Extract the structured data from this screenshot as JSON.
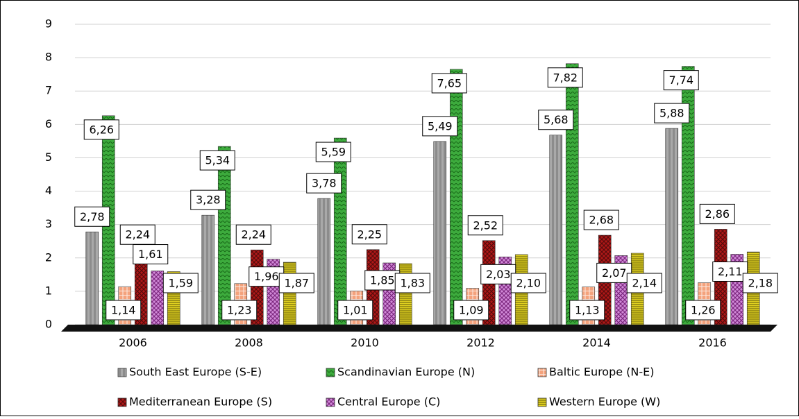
{
  "chart_data": {
    "type": "bar",
    "categories": [
      "2006",
      "2008",
      "2010",
      "2012",
      "2014",
      "2016"
    ],
    "series": [
      {
        "name": "South East Europe (S-E)",
        "color": "#8c8c8c",
        "values": [
          2.78,
          3.28,
          3.78,
          5.49,
          5.68,
          5.88
        ],
        "value_labels": [
          "2,78",
          "3,28",
          "3,78",
          "5,49",
          "5,68",
          "5,88"
        ]
      },
      {
        "name": "Scandinavian Europe (N)",
        "color": "#3dab3d",
        "values": [
          6.26,
          5.34,
          5.59,
          7.65,
          7.82,
          7.74
        ],
        "value_labels": [
          "6,26",
          "5,34",
          "5,59",
          "7,65",
          "7,82",
          "7,74"
        ]
      },
      {
        "name": "Baltic Europe (N-E)",
        "color": "#f4a27c",
        "values": [
          1.14,
          1.23,
          1.01,
          1.09,
          1.13,
          1.26
        ],
        "value_labels": [
          "1,14",
          "1,23",
          "1,01",
          "1,09",
          "1,13",
          "1,26"
        ]
      },
      {
        "name": "Mediterranean Europe (S)",
        "color": "#b01818",
        "values": [
          2.24,
          2.24,
          2.25,
          2.52,
          2.68,
          2.86
        ],
        "value_labels": [
          "2,24",
          "2,24",
          "2,25",
          "2,52",
          "2,68",
          "2,86"
        ]
      },
      {
        "name": "Central Europe (C)",
        "color": "#d18ad8",
        "values": [
          1.61,
          1.96,
          1.85,
          2.03,
          2.07,
          2.11
        ],
        "value_labels": [
          "1,61",
          "1,96",
          "1,85",
          "2,03",
          "2,07",
          "2,11"
        ]
      },
      {
        "name": "Western Europe (W)",
        "color": "#e0d020",
        "values": [
          1.59,
          1.87,
          1.83,
          2.1,
          2.14,
          2.18
        ],
        "value_labels": [
          "1,59",
          "1,87",
          "1,83",
          "2,10",
          "2,14",
          "2,18"
        ]
      }
    ],
    "ylim": [
      0,
      9
    ],
    "yticks": [
      0,
      1,
      2,
      3,
      4,
      5,
      6,
      7,
      8,
      9
    ],
    "grid": true
  }
}
